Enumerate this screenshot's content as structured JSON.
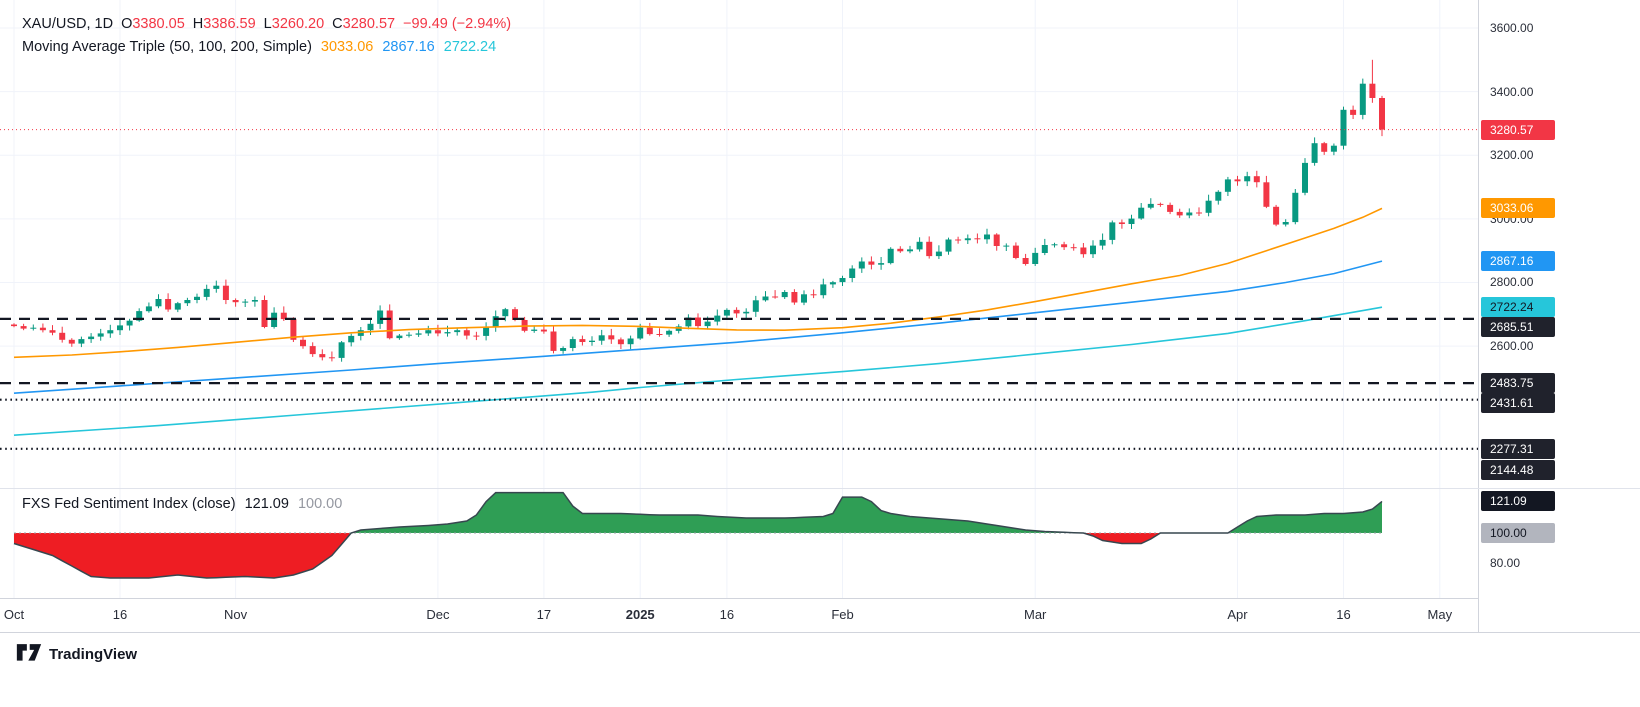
{
  "header": {
    "symbol": "XAU/USD, 1D",
    "ohlc": [
      {
        "label": "O",
        "value": "3380.05"
      },
      {
        "label": "H",
        "value": "3386.59"
      },
      {
        "label": "L",
        "value": "3260.20"
      },
      {
        "label": "C",
        "value": "3280.57"
      }
    ],
    "change": "−99.49 (−2.94%)",
    "ma_title": "Moving Average Triple (50, 100, 200, Simple)",
    "ma_values": [
      {
        "value": "3033.06"
      },
      {
        "value": "2867.16"
      },
      {
        "value": "2722.24"
      }
    ]
  },
  "sentiment_header": {
    "title": "FXS Fed Sentiment Index (close)",
    "value": "121.09",
    "baseline": "100.00"
  },
  "footer": {
    "brand": "TradingView"
  },
  "colors": {
    "up": "#089981",
    "down": "#f23645",
    "ma50": "#ff9800",
    "ma100": "#2196f3",
    "ma200": "#26c6da",
    "text": "#131722",
    "muted": "#9598a1",
    "level_dark": "#20222c",
    "sent_above": "#2f9e55",
    "sent_below": "#ee1d23",
    "sent_stroke": "#37474f"
  },
  "chart_data": [
    {
      "type": "candlestick",
      "title": "XAU/USD 1D with Moving Average Triple (50, 100, 200, Simple)",
      "ylim": [
        2154,
        3688
      ],
      "yticks": [
        3600,
        3400,
        3200,
        3000,
        2800,
        2600
      ],
      "x_axis_labels": [
        {
          "label": "Oct",
          "index": 0
        },
        {
          "label": "16",
          "index": 11
        },
        {
          "label": "Nov",
          "index": 23
        },
        {
          "label": "Dec",
          "index": 44
        },
        {
          "label": "17",
          "index": 55
        },
        {
          "label": "2025",
          "index": 65,
          "bold": true
        },
        {
          "label": "16",
          "index": 74
        },
        {
          "label": "Feb",
          "index": 86
        },
        {
          "label": "Mar",
          "index": 106
        },
        {
          "label": "Apr",
          "index": 127
        },
        {
          "label": "16",
          "index": 138
        },
        {
          "label": "May",
          "index": 148
        }
      ],
      "candles": {
        "first_open": 2668,
        "closes": [
          2663,
          2655,
          2658,
          2650,
          2642,
          2620,
          2608,
          2622,
          2630,
          2640,
          2650,
          2665,
          2680,
          2710,
          2725,
          2748,
          2715,
          2735,
          2745,
          2755,
          2780,
          2790,
          2745,
          2738,
          2740,
          2745,
          2660,
          2705,
          2685,
          2620,
          2600,
          2575,
          2565,
          2563,
          2612,
          2632,
          2650,
          2670,
          2712,
          2625,
          2633,
          2636,
          2640,
          2650,
          2640,
          2644,
          2650,
          2633,
          2632,
          2660,
          2694,
          2716,
          2682,
          2648,
          2652,
          2646,
          2585,
          2594,
          2622,
          2613,
          2617,
          2634,
          2621,
          2606,
          2624,
          2658,
          2638,
          2636,
          2648,
          2662,
          2690,
          2663,
          2677,
          2696,
          2714,
          2703,
          2708,
          2744,
          2756,
          2754,
          2770,
          2737,
          2763,
          2760,
          2794,
          2801,
          2814,
          2844,
          2866,
          2856,
          2861,
          2906,
          2898,
          2904,
          2928,
          2883,
          2897,
          2935,
          2933,
          2939,
          2936,
          2951,
          2915,
          2916,
          2877,
          2858,
          2893,
          2918,
          2920,
          2911,
          2910,
          2889,
          2916,
          2934,
          2989,
          2984,
          3001,
          3035,
          3047,
          3044,
          3022,
          3011,
          3020,
          3019,
          3057,
          3085,
          3124,
          3118,
          3134,
          3115,
          3038,
          2982,
          2990,
          3082,
          3176,
          3238,
          3211,
          3230,
          3343,
          3327,
          3425,
          3380,
          3280.57
        ],
        "overrides": {
          "141": {
            "high": 3500,
            "low": 3365
          },
          "142": {
            "open": 3380.05,
            "high": 3386.59,
            "low": 3260.2,
            "close": 3280.57
          }
        }
      },
      "moving_averages": [
        {
          "name": "SMA 50",
          "color": "#ff9800",
          "last": 3033.06,
          "points": [
            [
              0,
              2565
            ],
            [
              6,
              2572
            ],
            [
              11,
              2582
            ],
            [
              17,
              2596
            ],
            [
              23,
              2612
            ],
            [
              29,
              2628
            ],
            [
              35,
              2642
            ],
            [
              41,
              2652
            ],
            [
              47,
              2658
            ],
            [
              53,
              2663
            ],
            [
              59,
              2665
            ],
            [
              65,
              2662
            ],
            [
              70,
              2656
            ],
            [
              75,
              2651
            ],
            [
              80,
              2650
            ],
            [
              86,
              2658
            ],
            [
              91,
              2672
            ],
            [
              96,
              2692
            ],
            [
              101,
              2714
            ],
            [
              106,
              2740
            ],
            [
              111,
              2768
            ],
            [
              116,
              2796
            ],
            [
              121,
              2822
            ],
            [
              126,
              2860
            ],
            [
              130,
              2900
            ],
            [
              134,
              2940
            ],
            [
              137,
              2970
            ],
            [
              140,
              3005
            ],
            [
              142,
              3033.06
            ]
          ]
        },
        {
          "name": "SMA 100",
          "color": "#2196f3",
          "last": 2867.16,
          "points": [
            [
              0,
              2452
            ],
            [
              11,
              2475
            ],
            [
              23,
              2500
            ],
            [
              35,
              2525
            ],
            [
              44,
              2545
            ],
            [
              55,
              2568
            ],
            [
              65,
              2590
            ],
            [
              75,
              2612
            ],
            [
              86,
              2642
            ],
            [
              96,
              2672
            ],
            [
              106,
              2705
            ],
            [
              116,
              2738
            ],
            [
              126,
              2772
            ],
            [
              132,
              2800
            ],
            [
              137,
              2828
            ],
            [
              142,
              2867.16
            ]
          ]
        },
        {
          "name": "SMA 200",
          "color": "#26c6da",
          "last": 2722.24,
          "points": [
            [
              0,
              2320
            ],
            [
              15,
              2350
            ],
            [
              30,
              2385
            ],
            [
              45,
              2420
            ],
            [
              60,
              2455
            ],
            [
              65,
              2470
            ],
            [
              75,
              2495
            ],
            [
              86,
              2520
            ],
            [
              96,
              2545
            ],
            [
              106,
              2575
            ],
            [
              116,
              2605
            ],
            [
              126,
              2640
            ],
            [
              134,
              2680
            ],
            [
              142,
              2722.24
            ]
          ]
        }
      ],
      "levels": [
        {
          "price": 3280.57,
          "label": "3280.57",
          "style": "price-dotted",
          "color": "#f23645",
          "badge_bg": "#f23645",
          "badge_fg": "#ffffff"
        },
        {
          "price": 3033.06,
          "label": "3033.06",
          "style": "none",
          "badge_bg": "#ff9800",
          "badge_fg": "#ffffff"
        },
        {
          "price": 2867.16,
          "label": "2867.16",
          "style": "none",
          "badge_bg": "#2196f3",
          "badge_fg": "#ffffff"
        },
        {
          "price": 2722.24,
          "label": "2722.24",
          "style": "none",
          "badge_bg": "#26c6da",
          "badge_fg": "#131722"
        },
        {
          "price": 2685.51,
          "label": "2685.51",
          "style": "dashed",
          "color": "#131722",
          "badge_bg": "#20222c",
          "badge_fg": "#ffffff"
        },
        {
          "price": 2483.75,
          "label": "2483.75",
          "style": "dashed",
          "color": "#131722",
          "badge_bg": "#20222c",
          "badge_fg": "#ffffff"
        },
        {
          "price": 2431.61,
          "label": "2431.61",
          "style": "dotted",
          "color": "#131722",
          "badge_bg": "#20222c",
          "badge_fg": "#ffffff"
        },
        {
          "price": 2277.31,
          "label": "2277.31",
          "style": "dotted",
          "color": "#131722",
          "badge_bg": "#20222c",
          "badge_fg": "#ffffff"
        },
        {
          "price": 2144.48,
          "label": "2144.48",
          "style": "none",
          "badge_bg": "#20222c",
          "badge_fg": "#ffffff"
        }
      ]
    },
    {
      "type": "area",
      "title": "FXS Fed Sentiment Index (close)",
      "baseline": 100,
      "current": 121.09,
      "ylim": [
        56.7,
        128.7
      ],
      "yticks": [
        80
      ],
      "colors": {
        "above": "#2f9e55",
        "below": "#ee1d23",
        "stroke": "#37474f"
      },
      "badges": [
        {
          "value": 121.09,
          "label": "121.09",
          "bg": "#131722",
          "fg": "#ffffff"
        },
        {
          "value": 100,
          "label": "100.00",
          "bg": "#b2b5be",
          "fg": "#131722"
        }
      ],
      "points": [
        [
          0,
          93
        ],
        [
          2,
          89
        ],
        [
          4,
          85
        ],
        [
          6,
          78
        ],
        [
          8,
          71
        ],
        [
          10,
          70
        ],
        [
          14,
          70
        ],
        [
          17,
          72
        ],
        [
          20,
          70
        ],
        [
          24,
          71
        ],
        [
          27,
          70
        ],
        [
          29,
          72
        ],
        [
          31,
          76
        ],
        [
          33,
          85
        ],
        [
          35,
          100
        ],
        [
          36,
          102
        ],
        [
          38,
          103
        ],
        [
          40,
          104
        ],
        [
          43,
          105
        ],
        [
          45,
          106
        ],
        [
          47,
          108
        ],
        [
          48,
          112
        ],
        [
          49,
          121
        ],
        [
          50,
          127
        ],
        [
          57,
          127
        ],
        [
          58,
          118
        ],
        [
          59,
          113
        ],
        [
          63,
          113
        ],
        [
          67,
          112
        ],
        [
          71,
          112
        ],
        [
          73,
          111
        ],
        [
          76,
          110
        ],
        [
          80,
          110
        ],
        [
          84,
          111
        ],
        [
          85,
          113
        ],
        [
          86,
          124
        ],
        [
          88,
          124
        ],
        [
          89,
          121
        ],
        [
          90,
          115
        ],
        [
          91,
          113
        ],
        [
          93,
          111
        ],
        [
          95,
          110
        ],
        [
          97,
          109
        ],
        [
          99,
          108
        ],
        [
          101,
          106
        ],
        [
          103,
          104
        ],
        [
          105,
          102
        ],
        [
          107,
          101
        ],
        [
          109,
          100.5
        ],
        [
          111,
          100
        ],
        [
          112,
          98
        ],
        [
          113,
          95
        ],
        [
          115,
          93
        ],
        [
          117,
          93
        ],
        [
          118,
          96
        ],
        [
          119,
          100
        ],
        [
          126,
          100
        ],
        [
          127,
          104
        ],
        [
          128,
          108
        ],
        [
          129,
          111
        ],
        [
          131,
          112
        ],
        [
          134,
          112
        ],
        [
          136,
          113
        ],
        [
          138,
          113
        ],
        [
          140,
          114
        ],
        [
          141,
          116
        ],
        [
          142,
          121.09
        ]
      ]
    }
  ]
}
